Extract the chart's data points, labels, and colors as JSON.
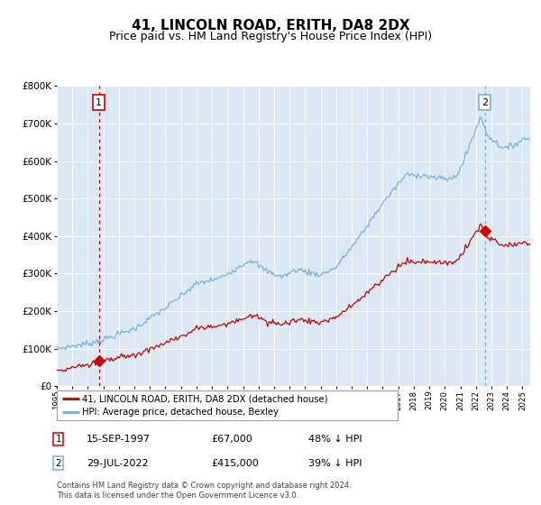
{
  "title": "41, LINCOLN ROAD, ERITH, DA8 2DX",
  "subtitle": "Price paid vs. HM Land Registry's House Price Index (HPI)",
  "title_fontsize": 11,
  "subtitle_fontsize": 9,
  "plot_bg_color": "#dce9f5",
  "hpi_color": "#7ab3d4",
  "price_color": "#cc0000",
  "vline1_color": "#cc0000",
  "vline2_color": "#7ab3d4",
  "annotation1_year": 1997.71,
  "annotation2_year": 2022.58,
  "sale1_price": 67000,
  "sale2_price": 415000,
  "sale1_label": "15-SEP-1997",
  "sale2_label": "29-JUL-2022",
  "sale1_hpi_pct": "48% ↓ HPI",
  "sale2_hpi_pct": "39% ↓ HPI",
  "legend_label1": "41, LINCOLN ROAD, ERITH, DA8 2DX (detached house)",
  "legend_label2": "HPI: Average price, detached house, Bexley",
  "footer1": "Contains HM Land Registry data © Crown copyright and database right 2024.",
  "footer2": "This data is licensed under the Open Government Licence v3.0.",
  "xmin": 1995.0,
  "xmax": 2025.5,
  "ymin": 0,
  "ymax": 800000,
  "grid_color": "#ffffff",
  "fig_width": 6.0,
  "fig_height": 5.6,
  "dpi": 100
}
